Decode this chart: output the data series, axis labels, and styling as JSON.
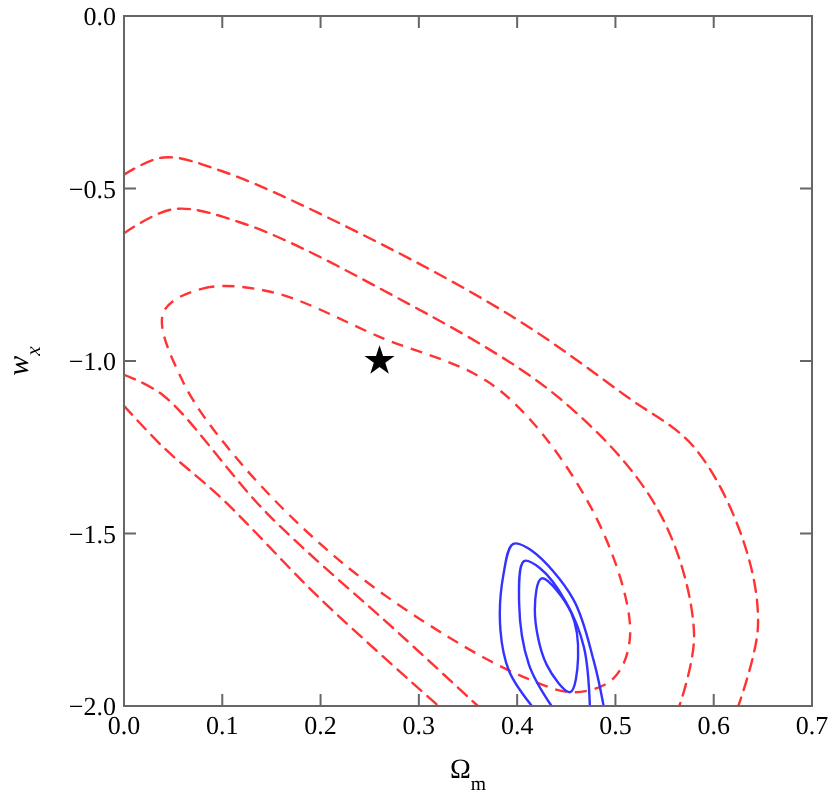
{
  "chart_data": {
    "type": "line",
    "xlabel": "Ω$_{m}$",
    "ylabel": "w$_{x}$",
    "xlim": [
      0,
      0.7
    ],
    "ylim": [
      -2,
      0
    ],
    "xticks": [
      {
        "value": 0,
        "label": "0.0"
      },
      {
        "value": 0.1,
        "label": "0.1"
      },
      {
        "value": 0.2,
        "label": "0.2"
      },
      {
        "value": 0.3,
        "label": "0.3"
      },
      {
        "value": 0.4,
        "label": "0.4"
      },
      {
        "value": 0.5,
        "label": "0.5"
      },
      {
        "value": 0.6,
        "label": "0.6"
      },
      {
        "value": 0.7,
        "label": "0.7"
      }
    ],
    "yticks": [
      {
        "value": 0,
        "label": "0.0"
      },
      {
        "value": -0.5,
        "label": "−0.5"
      },
      {
        "value": -1,
        "label": "−1.0"
      },
      {
        "value": -1.5,
        "label": "−1.5"
      },
      {
        "value": -2,
        "label": "−2.0"
      }
    ],
    "grid": false,
    "series": [
      {
        "color": "#ff3333",
        "line_style": "dashed",
        "x": [
          0.0,
          0.04,
          0.1,
          0.254,
          0.4,
          0.51,
          0.58,
          0.63,
          0.645,
          0.625
        ],
        "values": [
          -0.46,
          -0.41,
          -0.45,
          -0.65,
          -0.88,
          -1.1,
          -1.25,
          -1.52,
          -1.77,
          -2.0
        ]
      },
      {
        "color": "#ff3333",
        "line_style": "dashed",
        "x": [
          0.0,
          0.04,
          0.1,
          0.2,
          0.32
        ],
        "values": [
          -1.13,
          -1.25,
          -1.4,
          -1.69,
          -2.0
        ]
      },
      {
        "color": "#ff3333",
        "line_style": "dashed",
        "x": [
          0.0,
          0.05,
          0.12,
          0.254,
          0.444,
          0.545,
          0.58,
          0.565
        ],
        "values": [
          -0.63,
          -0.56,
          -0.6,
          -0.78,
          -1.11,
          -1.44,
          -1.79,
          -2.0
        ]
      },
      {
        "color": "#ff3333",
        "line_style": "dashed",
        "x": [
          0.0,
          0.04,
          0.145,
          0.28,
          0.36
        ],
        "values": [
          -1.04,
          -1.1,
          -1.44,
          -1.79,
          -2.0
        ]
      },
      {
        "color": "#3333ff",
        "line_style": "solid",
        "x": [
          0.415,
          0.392,
          0.383,
          0.386,
          0.396,
          0.415,
          0.457,
          0.478,
          0.488
        ],
        "values": [
          -2.0,
          -1.9,
          -1.78,
          -1.62,
          -1.53,
          -1.55,
          -1.69,
          -1.87,
          -2.0
        ]
      },
      {
        "color": "#3333ff",
        "line_style": "solid",
        "x": [
          0.435,
          0.412,
          0.402,
          0.407,
          0.423,
          0.45,
          0.468,
          0.474
        ],
        "values": [
          -2.0,
          -1.88,
          -1.7,
          -1.58,
          -1.6,
          -1.7,
          -1.83,
          -2.0
        ]
      },
      {
        "type": "scatter",
        "marker": "star",
        "color": "#000000",
        "x": [
          0.26
        ],
        "values": [
          -1.0
        ]
      }
    ]
  }
}
